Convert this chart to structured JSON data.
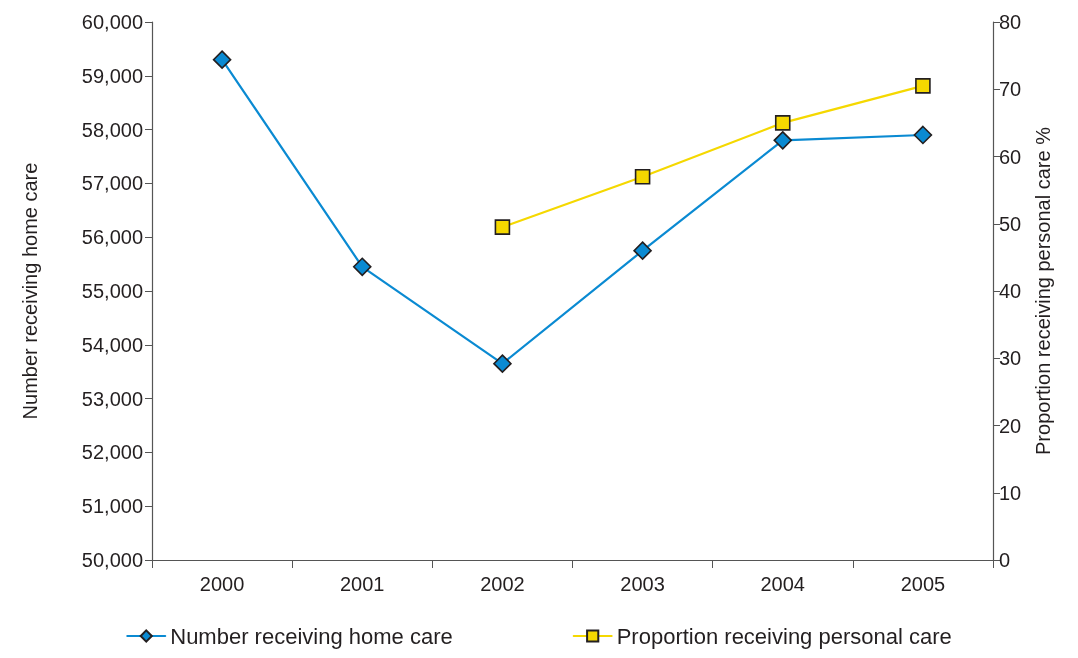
{
  "chart_data": {
    "type": "line",
    "categories": [
      "2000",
      "2001",
      "2002",
      "2003",
      "2004",
      "2005"
    ],
    "ylabel": "Number receiving home care",
    "y2label": "Proportion receiving personal care %",
    "ylim": [
      50000,
      60000
    ],
    "yticks": [
      {
        "value": 50000,
        "label": "50,000"
      },
      {
        "value": 51000,
        "label": "51,000"
      },
      {
        "value": 52000,
        "label": "52,000"
      },
      {
        "value": 53000,
        "label": "53,000"
      },
      {
        "value": 54000,
        "label": "54,000"
      },
      {
        "value": 55000,
        "label": "55,000"
      },
      {
        "value": 56000,
        "label": "56,000"
      },
      {
        "value": 57000,
        "label": "57,000"
      },
      {
        "value": 58000,
        "label": "58,000"
      },
      {
        "value": 59000,
        "label": "59,000"
      },
      {
        "value": 60000,
        "label": "60,000"
      }
    ],
    "y2lim": [
      0,
      80
    ],
    "y2ticks": [
      0,
      10,
      20,
      30,
      40,
      50,
      60,
      70,
      80
    ],
    "series": [
      {
        "name": "Number receiving home care",
        "color": "#0a8ad2",
        "marker": "diamond",
        "values": [
          59300,
          55450,
          53650,
          55750,
          57800,
          57900
        ]
      },
      {
        "name": "Proportion receiving personal care",
        "color": "#f5d800",
        "marker": "square",
        "axis": "y2",
        "values": [
          null,
          null,
          49.5,
          57,
          65,
          70.5
        ]
      }
    ],
    "line_style": "solid",
    "grid": false,
    "legend": "bottom"
  }
}
